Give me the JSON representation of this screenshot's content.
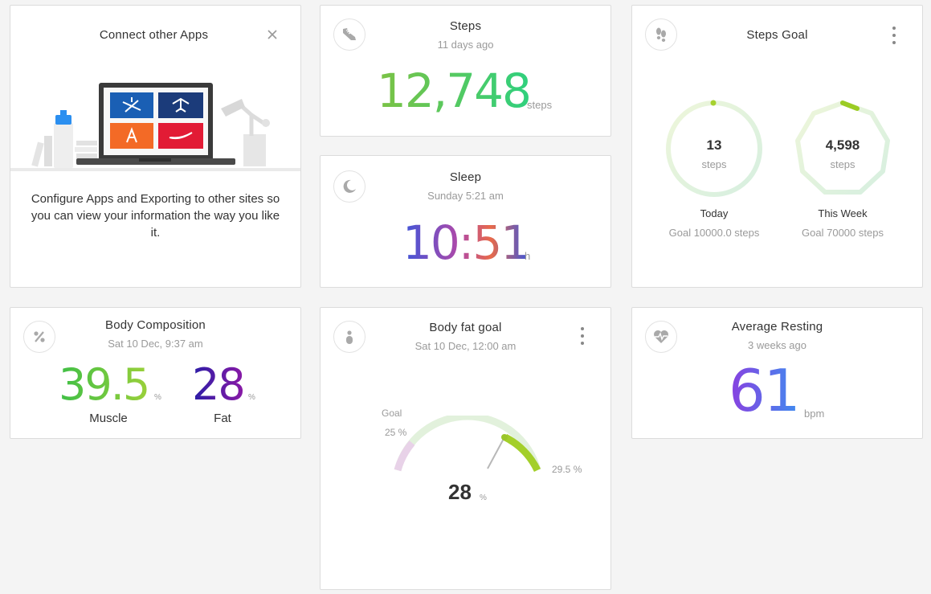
{
  "connect_apps": {
    "title": "Connect other Apps",
    "close_icon": "close-icon",
    "description": "Configure Apps and Exporting to other sites so you can view your information the way you like it."
  },
  "steps": {
    "icon": "shoe-icon",
    "title": "Steps",
    "when": "11 days ago",
    "value": "12,748",
    "unit": "steps"
  },
  "steps_goal": {
    "icon": "footprints-icon",
    "title": "Steps Goal",
    "today": {
      "value": "13",
      "unit": "steps",
      "label": "Today",
      "goal": "Goal 10000.0 steps",
      "progress": 0.0013
    },
    "week": {
      "value": "4,598",
      "unit": "steps",
      "label": "This Week",
      "goal": "Goal 70000 steps",
      "progress": 0.066
    }
  },
  "sleep": {
    "icon": "moon-icon",
    "title": "Sleep",
    "when": "Sunday 5:21 am",
    "value": "10:51",
    "unit": "h"
  },
  "body_composition": {
    "icon": "percent-icon",
    "title": "Body Composition",
    "when": "Sat 10 Dec, 9:37 am",
    "muscle": {
      "value": "39.5",
      "unit": "%",
      "label": "Muscle"
    },
    "fat": {
      "value": "28",
      "unit": "%",
      "label": "Fat"
    }
  },
  "body_fat_goal": {
    "icon": "person-icon",
    "title": "Body fat goal",
    "when": "Sat 10 Dec, 12:00 am",
    "goal_label": "Goal",
    "goal_value": "25 %",
    "max_value": "29.5 %",
    "current_value": "28",
    "current_unit": "%"
  },
  "avg_resting": {
    "icon": "heart-rate-icon",
    "title": "Average Resting",
    "when": "3 weeks ago",
    "value": "61",
    "unit": "bpm"
  },
  "colors": {
    "accent_green": "#9acd32",
    "ring_track": "#e2f1dc"
  }
}
